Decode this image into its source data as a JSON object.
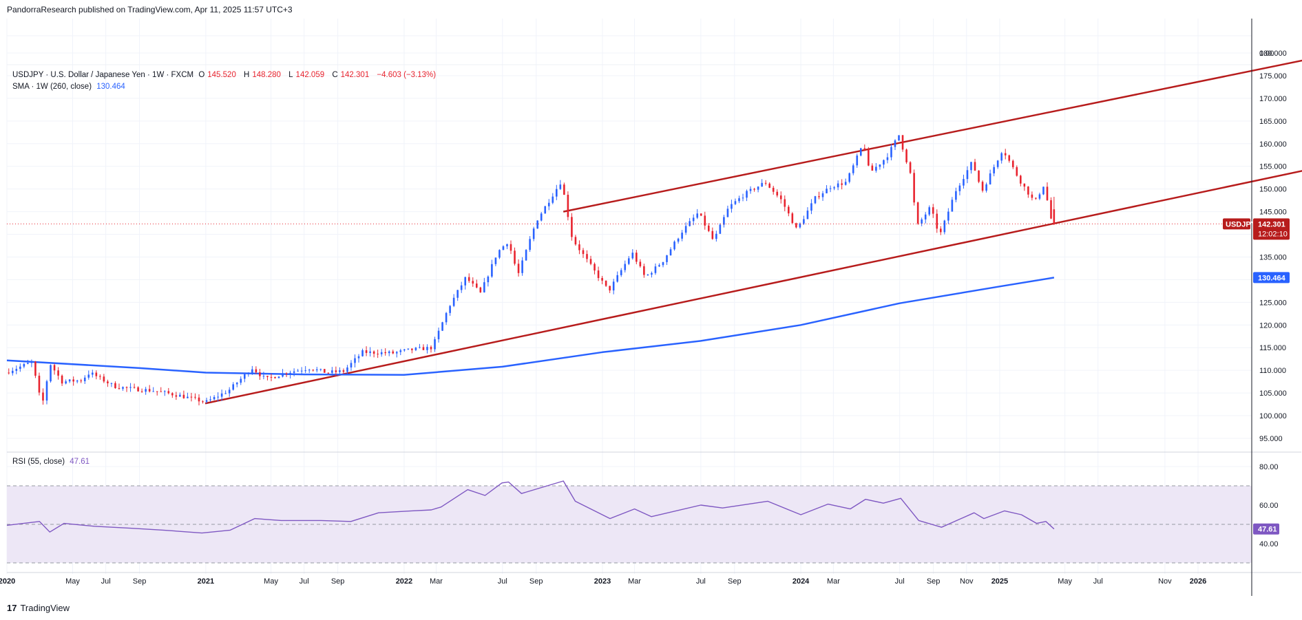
{
  "header": {
    "published": "PandorraResearch published on TradingView.com, Apr 11, 2025 11:57 UTC+3"
  },
  "legend": {
    "symbol": "USDJPY · U.S. Dollar / Japanese Yen · 1W · FXCM",
    "open_label": "O",
    "open": "145.520",
    "high_label": "H",
    "high": "148.280",
    "low_label": "L",
    "low": "142.059",
    "close_label": "C",
    "close": "142.301",
    "change": "−4.603 (−3.13%)",
    "sma_label": "SMA · 1W (260, close)",
    "sma_value": "130.464",
    "rsi_label": "RSI (55, close)",
    "rsi_value": "47.61"
  },
  "footer": {
    "brand": "TradingView",
    "logo_text": "17"
  },
  "colors": {
    "up": "#2962ff",
    "down": "#e8232e",
    "trend": "#b71c1c",
    "sma": "#2962ff",
    "rsi": "#7e57c2",
    "rsi_band": "#ede7f6"
  },
  "chart_data": [
    {
      "type": "candlestick",
      "title": "USDJPY · U.S. Dollar / Japanese Yen · 1W · FXCM",
      "x_tick_labels": [
        "2020",
        "May",
        "Jul",
        "Sep",
        "2021",
        "May",
        "Jul",
        "Sep",
        "2022",
        "Mar",
        "Jul",
        "Sep",
        "2023",
        "Mar",
        "Jul",
        "Sep",
        "2024",
        "Mar",
        "Jul",
        "Sep",
        "Nov",
        "2025",
        "May",
        "Jul",
        "Nov",
        "2026"
      ],
      "x_tick_dates": [
        "2020-01-01",
        "2020-05-01",
        "2020-07-01",
        "2020-09-01",
        "2021-01-01",
        "2021-05-01",
        "2021-07-01",
        "2021-09-01",
        "2022-01-01",
        "2022-03-01",
        "2022-07-01",
        "2022-09-01",
        "2023-01-01",
        "2023-03-01",
        "2023-07-01",
        "2023-09-01",
        "2024-01-01",
        "2024-03-01",
        "2024-07-01",
        "2024-09-01",
        "2024-11-01",
        "2025-01-01",
        "2025-05-01",
        "2025-07-01",
        "2025-11-01",
        "2026-01-01"
      ],
      "y_tick_labels": [
        "0.00",
        "180.000",
        "175.000",
        "170.000",
        "165.000",
        "160.000",
        "155.000",
        "150.000",
        "145.000",
        "140.000",
        "135.000",
        "130.000",
        "125.000",
        "120.000",
        "115.000",
        "110.000",
        "105.000",
        "100.000",
        "95.000"
      ],
      "ylim": [
        91,
        190
      ],
      "grid": true,
      "price_label": {
        "symbol": "USDJPY",
        "price": "142.301",
        "countdown": "12:02:10"
      },
      "sma_label_value": "130.464",
      "price_series_points": [
        {
          "x": "2020-01-01",
          "y": 109.5
        },
        {
          "x": "2020-02-20",
          "y": 111.8
        },
        {
          "x": "2020-03-09",
          "y": 102.0
        },
        {
          "x": "2020-03-24",
          "y": 111.5
        },
        {
          "x": "2020-04-15",
          "y": 107.5
        },
        {
          "x": "2020-05-20",
          "y": 107.8
        },
        {
          "x": "2020-06-05",
          "y": 109.5
        },
        {
          "x": "2020-07-20",
          "y": 106.5
        },
        {
          "x": "2020-08-15",
          "y": 106.0
        },
        {
          "x": "2020-10-01",
          "y": 105.5
        },
        {
          "x": "2020-11-15",
          "y": 104.5
        },
        {
          "x": "2021-01-05",
          "y": 103.0
        },
        {
          "x": "2021-02-15",
          "y": 105.5
        },
        {
          "x": "2021-03-31",
          "y": 110.5
        },
        {
          "x": "2021-04-25",
          "y": 108.0
        },
        {
          "x": "2021-06-01",
          "y": 109.5
        },
        {
          "x": "2021-07-15",
          "y": 110.5
        },
        {
          "x": "2021-08-15",
          "y": 109.5
        },
        {
          "x": "2021-09-15",
          "y": 109.8
        },
        {
          "x": "2021-10-20",
          "y": 114.0
        },
        {
          "x": "2021-12-15",
          "y": 113.8
        },
        {
          "x": "2022-01-15",
          "y": 114.5
        },
        {
          "x": "2022-02-25",
          "y": 115.0
        },
        {
          "x": "2022-03-28",
          "y": 124.0
        },
        {
          "x": "2022-04-28",
          "y": 130.5
        },
        {
          "x": "2022-05-25",
          "y": 127.0
        },
        {
          "x": "2022-06-25",
          "y": 136.0
        },
        {
          "x": "2022-07-15",
          "y": 138.5
        },
        {
          "x": "2022-08-02",
          "y": 131.0
        },
        {
          "x": "2022-09-05",
          "y": 143.0
        },
        {
          "x": "2022-10-21",
          "y": 151.8
        },
        {
          "x": "2022-11-10",
          "y": 139.0
        },
        {
          "x": "2022-12-20",
          "y": 132.0
        },
        {
          "x": "2023-01-16",
          "y": 127.5
        },
        {
          "x": "2023-02-28",
          "y": 136.0
        },
        {
          "x": "2023-03-24",
          "y": 130.5
        },
        {
          "x": "2023-04-25",
          "y": 134.0
        },
        {
          "x": "2023-05-30",
          "y": 140.5
        },
        {
          "x": "2023-06-30",
          "y": 144.8
        },
        {
          "x": "2023-07-28",
          "y": 138.5
        },
        {
          "x": "2023-08-25",
          "y": 146.0
        },
        {
          "x": "2023-09-25",
          "y": 149.0
        },
        {
          "x": "2023-10-31",
          "y": 151.5
        },
        {
          "x": "2023-11-30",
          "y": 147.5
        },
        {
          "x": "2023-12-28",
          "y": 141.0
        },
        {
          "x": "2024-01-31",
          "y": 148.0
        },
        {
          "x": "2024-02-28",
          "y": 150.5
        },
        {
          "x": "2024-03-28",
          "y": 151.5
        },
        {
          "x": "2024-04-29",
          "y": 160.2
        },
        {
          "x": "2024-05-10",
          "y": 153.5
        },
        {
          "x": "2024-06-10",
          "y": 157.0
        },
        {
          "x": "2024-07-03",
          "y": 161.9
        },
        {
          "x": "2024-07-25",
          "y": 153.0
        },
        {
          "x": "2024-08-05",
          "y": 141.7
        },
        {
          "x": "2024-08-30",
          "y": 146.0
        },
        {
          "x": "2024-09-16",
          "y": 139.6
        },
        {
          "x": "2024-10-15",
          "y": 149.5
        },
        {
          "x": "2024-11-15",
          "y": 156.0
        },
        {
          "x": "2024-12-03",
          "y": 149.5
        },
        {
          "x": "2025-01-10",
          "y": 158.8
        },
        {
          "x": "2025-02-10",
          "y": 152.0
        },
        {
          "x": "2025-03-10",
          "y": 147.0
        },
        {
          "x": "2025-03-27",
          "y": 151.0
        },
        {
          "x": "2025-04-11",
          "y": 142.3
        }
      ],
      "last_candle": {
        "open": 145.52,
        "high": 148.28,
        "low": 142.059,
        "close": 142.301
      },
      "trendlines": [
        {
          "from": {
            "x": "2020-12-31",
            "y": 102.7
          },
          "to": {
            "x": "2026-08-28",
            "y": 155.2
          }
        },
        {
          "from": {
            "x": "2022-10-21",
            "y": 145.0
          },
          "to": {
            "x": "2026-08-28",
            "y": 179.5
          }
        }
      ],
      "sma_points": [
        {
          "x": "2020-01-01",
          "y": 112.2
        },
        {
          "x": "2020-09-01",
          "y": 110.5
        },
        {
          "x": "2021-01-01",
          "y": 109.5
        },
        {
          "x": "2021-07-01",
          "y": 109.1
        },
        {
          "x": "2022-01-01",
          "y": 109.0
        },
        {
          "x": "2022-07-01",
          "y": 110.8
        },
        {
          "x": "2023-01-01",
          "y": 114.0
        },
        {
          "x": "2023-07-01",
          "y": 116.5
        },
        {
          "x": "2024-01-01",
          "y": 120.0
        },
        {
          "x": "2024-07-01",
          "y": 124.8
        },
        {
          "x": "2025-01-01",
          "y": 128.5
        },
        {
          "x": "2025-04-11",
          "y": 130.464
        }
      ]
    },
    {
      "type": "line",
      "title": "RSI (55, close)",
      "y_tick_labels": [
        "80.00",
        "60.00",
        "40.00"
      ],
      "ylim": [
        28,
        84
      ],
      "band": [
        30,
        70
      ],
      "midline": 50,
      "last_value": 47.61,
      "points": [
        {
          "x": "2020-01-01",
          "y": 49.5
        },
        {
          "x": "2020-03-01",
          "y": 51.5
        },
        {
          "x": "2020-03-20",
          "y": 46.0
        },
        {
          "x": "2020-04-15",
          "y": 50.5
        },
        {
          "x": "2020-06-10",
          "y": 49.0
        },
        {
          "x": "2020-08-15",
          "y": 48.0
        },
        {
          "x": "2020-10-15",
          "y": 47.0
        },
        {
          "x": "2020-12-25",
          "y": 45.5
        },
        {
          "x": "2021-02-15",
          "y": 47.0
        },
        {
          "x": "2021-04-01",
          "y": 53.0
        },
        {
          "x": "2021-05-20",
          "y": 52.0
        },
        {
          "x": "2021-08-01",
          "y": 52.0
        },
        {
          "x": "2021-09-25",
          "y": 51.5
        },
        {
          "x": "2021-11-15",
          "y": 56.0
        },
        {
          "x": "2022-01-15",
          "y": 57.0
        },
        {
          "x": "2022-02-20",
          "y": 57.5
        },
        {
          "x": "2022-03-10",
          "y": 59.0
        },
        {
          "x": "2022-04-28",
          "y": 68.0
        },
        {
          "x": "2022-05-30",
          "y": 65.0
        },
        {
          "x": "2022-06-30",
          "y": 71.5
        },
        {
          "x": "2022-07-12",
          "y": 72.0
        },
        {
          "x": "2022-08-05",
          "y": 66.0
        },
        {
          "x": "2022-10-21",
          "y": 72.5
        },
        {
          "x": "2022-11-12",
          "y": 62.0
        },
        {
          "x": "2023-01-15",
          "y": 53.0
        },
        {
          "x": "2023-03-01",
          "y": 58.0
        },
        {
          "x": "2023-04-01",
          "y": 54.0
        },
        {
          "x": "2023-07-01",
          "y": 60.0
        },
        {
          "x": "2023-08-10",
          "y": 58.5
        },
        {
          "x": "2023-11-01",
          "y": 62.0
        },
        {
          "x": "2024-01-01",
          "y": 55.0
        },
        {
          "x": "2024-02-20",
          "y": 60.5
        },
        {
          "x": "2024-04-01",
          "y": 58.0
        },
        {
          "x": "2024-04-29",
          "y": 63.0
        },
        {
          "x": "2024-06-01",
          "y": 61.0
        },
        {
          "x": "2024-07-03",
          "y": 63.5
        },
        {
          "x": "2024-08-05",
          "y": 52.0
        },
        {
          "x": "2024-09-16",
          "y": 48.5
        },
        {
          "x": "2024-11-15",
          "y": 56.0
        },
        {
          "x": "2024-12-03",
          "y": 53.0
        },
        {
          "x": "2025-01-10",
          "y": 57.0
        },
        {
          "x": "2025-02-10",
          "y": 55.0
        },
        {
          "x": "2025-03-10",
          "y": 50.5
        },
        {
          "x": "2025-03-27",
          "y": 51.5
        },
        {
          "x": "2025-04-11",
          "y": 47.61
        }
      ]
    }
  ]
}
